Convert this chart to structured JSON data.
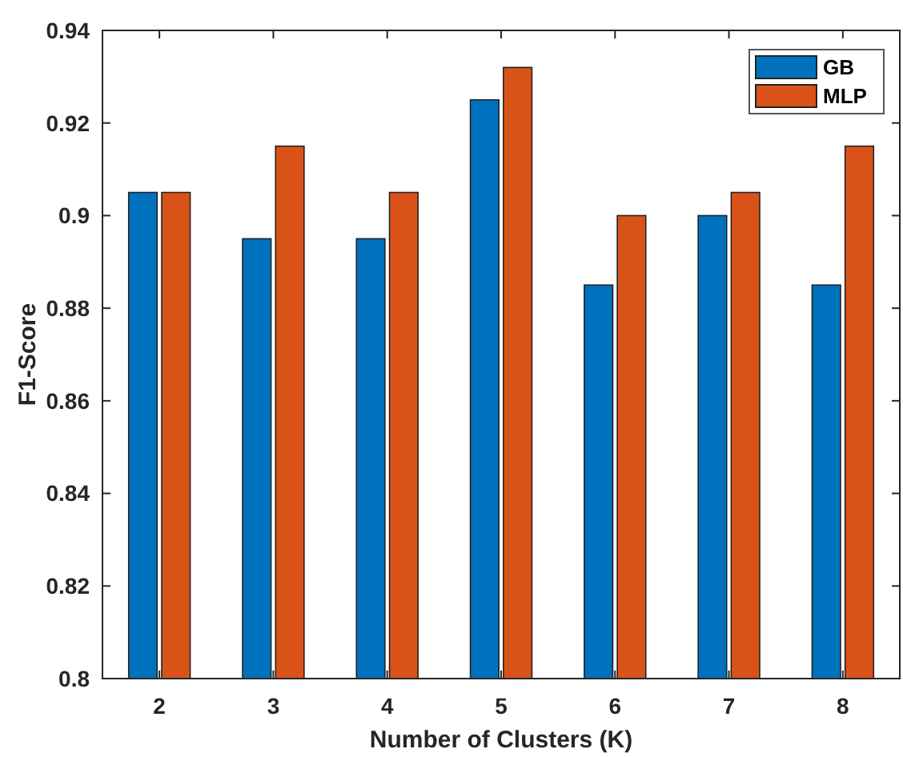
{
  "chart_data": {
    "type": "bar",
    "xlabel": "Number of Clusters (K)",
    "ylabel": "F1-Score",
    "categories": [
      "2",
      "3",
      "4",
      "5",
      "6",
      "7",
      "8"
    ],
    "series": [
      {
        "name": "GB",
        "color": "#0072bd",
        "values": [
          0.905,
          0.895,
          0.895,
          0.925,
          0.885,
          0.9,
          0.885
        ]
      },
      {
        "name": "MLP",
        "color": "#d95319",
        "values": [
          0.905,
          0.915,
          0.905,
          0.932,
          0.9,
          0.905,
          0.915
        ]
      }
    ],
    "ylim": [
      0.8,
      0.94
    ],
    "yticks": [
      0.8,
      0.82,
      0.84,
      0.86,
      0.88,
      0.9,
      0.92,
      0.94
    ],
    "grid": false,
    "legend": "top right"
  }
}
